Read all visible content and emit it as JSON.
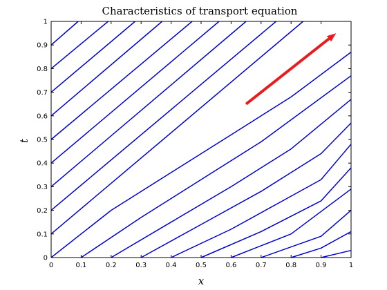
{
  "chart_data": {
    "type": "line",
    "title": "Characteristics of transport equation",
    "xlabel": "x",
    "ylabel": "t",
    "xlim": [
      0,
      1
    ],
    "ylim": [
      0,
      1
    ],
    "xticks": [
      "0",
      "0.1",
      "0.2",
      "0.3",
      "0.4",
      "0.5",
      "0.6",
      "0.7",
      "0.8",
      "0.9",
      "1"
    ],
    "yticks": [
      "0",
      "0.1",
      "0.2",
      "0.3",
      "0.4",
      "0.5",
      "0.6",
      "0.7",
      "0.8",
      "0.9",
      "1"
    ],
    "grid": false,
    "line_color": "#0000cc",
    "arrow_color": "#e81c1c",
    "characteristics": {
      "from_t_axis": [
        {
          "t0": 0.1,
          "points": [
            [
              0,
              0.1
            ],
            [
              0.84,
              1.0
            ]
          ]
        },
        {
          "t0": 0.2,
          "points": [
            [
              0,
              0.2
            ],
            [
              0.75,
              1.0
            ]
          ]
        },
        {
          "t0": 0.3,
          "points": [
            [
              0,
              0.3
            ],
            [
              0.65,
              1.0
            ]
          ]
        },
        {
          "t0": 0.4,
          "points": [
            [
              0,
              0.4
            ],
            [
              0.56,
              1.0
            ]
          ]
        },
        {
          "t0": 0.5,
          "points": [
            [
              0,
              0.5
            ],
            [
              0.47,
              1.0
            ]
          ]
        },
        {
          "t0": 0.6,
          "points": [
            [
              0,
              0.6
            ],
            [
              0.37,
              1.0
            ]
          ]
        },
        {
          "t0": 0.7,
          "points": [
            [
              0,
              0.7
            ],
            [
              0.28,
              1.0
            ]
          ]
        },
        {
          "t0": 0.8,
          "points": [
            [
              0,
              0.8
            ],
            [
              0.19,
              1.0
            ]
          ]
        },
        {
          "t0": 0.9,
          "points": [
            [
              0,
              0.9
            ],
            [
              0.09,
              1.0
            ]
          ]
        }
      ],
      "from_x_axis": [
        {
          "x0": 0.0,
          "points": [
            [
              0.0,
              0.0
            ],
            [
              0.2,
              0.2
            ],
            [
              0.4,
              0.36
            ],
            [
              0.6,
              0.52
            ],
            [
              0.8,
              0.68
            ],
            [
              1.0,
              0.87
            ]
          ]
        },
        {
          "x0": 0.1,
          "points": [
            [
              0.1,
              0.0
            ],
            [
              0.3,
              0.17
            ],
            [
              0.5,
              0.33
            ],
            [
              0.7,
              0.49
            ],
            [
              1.0,
              0.77
            ]
          ]
        },
        {
          "x0": 0.2,
          "points": [
            [
              0.2,
              0.0
            ],
            [
              0.4,
              0.15
            ],
            [
              0.6,
              0.3
            ],
            [
              0.8,
              0.46
            ],
            [
              1.0,
              0.67
            ]
          ]
        },
        {
          "x0": 0.3,
          "points": [
            [
              0.3,
              0.0
            ],
            [
              0.5,
              0.14
            ],
            [
              0.7,
              0.28
            ],
            [
              0.9,
              0.44
            ],
            [
              1.0,
              0.57
            ]
          ]
        },
        {
          "x0": 0.4,
          "points": [
            [
              0.4,
              0.0
            ],
            [
              0.6,
              0.12
            ],
            [
              0.8,
              0.26
            ],
            [
              0.9,
              0.33
            ],
            [
              1.0,
              0.48
            ]
          ]
        },
        {
          "x0": 0.5,
          "points": [
            [
              0.5,
              0.0
            ],
            [
              0.7,
              0.11
            ],
            [
              0.9,
              0.24
            ],
            [
              1.0,
              0.38
            ]
          ]
        },
        {
          "x0": 0.6,
          "points": [
            [
              0.6,
              0.0
            ],
            [
              0.8,
              0.1
            ],
            [
              1.0,
              0.29
            ]
          ]
        },
        {
          "x0": 0.7,
          "points": [
            [
              0.7,
              0.0
            ],
            [
              0.9,
              0.09
            ],
            [
              1.0,
              0.2
            ]
          ]
        },
        {
          "x0": 0.8,
          "points": [
            [
              0.8,
              0.0
            ],
            [
              0.9,
              0.04
            ],
            [
              1.0,
              0.11
            ]
          ]
        },
        {
          "x0": 0.9,
          "points": [
            [
              0.9,
              0.0
            ],
            [
              1.0,
              0.03
            ]
          ]
        }
      ]
    },
    "annotations": [
      {
        "type": "arrow",
        "from": [
          0.65,
          0.65
        ],
        "to": [
          0.95,
          0.95
        ]
      }
    ]
  }
}
